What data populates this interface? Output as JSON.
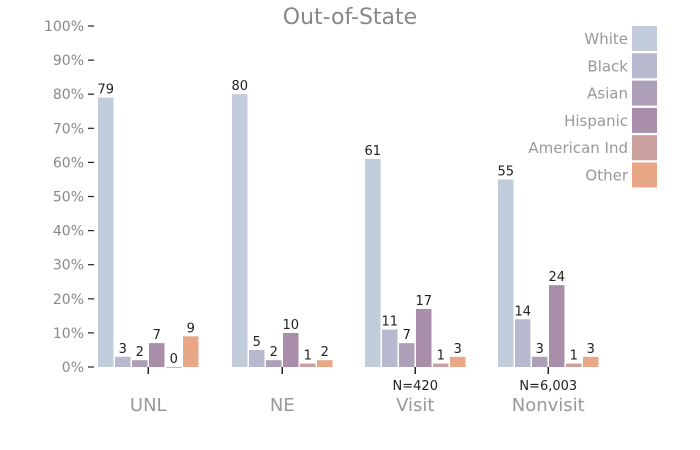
{
  "chart_data": {
    "type": "bar",
    "title": "Out-of-State",
    "categories": [
      "UNL",
      "NE",
      "Visit",
      "Nonvisit"
    ],
    "category_notes": [
      "",
      "",
      "N=420",
      "N=6,003"
    ],
    "ylim": [
      0,
      100
    ],
    "yticks": [
      "0%",
      "10%",
      "20%",
      "30%",
      "40%",
      "50%",
      "60%",
      "70%",
      "80%",
      "90%",
      "100%"
    ],
    "grid": false,
    "legend_position": "top-right",
    "series": [
      {
        "name": "White",
        "color": "#c3ccdb",
        "values": [
          79,
          80,
          61,
          55
        ]
      },
      {
        "name": "Black",
        "color": "#b8b8cf",
        "values": [
          3,
          5,
          11,
          14
        ]
      },
      {
        "name": "Asian",
        "color": "#ae9fb8",
        "values": [
          2,
          2,
          7,
          3
        ]
      },
      {
        "name": "Hispanic",
        "color": "#a88ea8",
        "values": [
          7,
          10,
          17,
          24
        ]
      },
      {
        "name": "American Ind",
        "color": "#c9a09d",
        "values": [
          0,
          1,
          1,
          1
        ]
      },
      {
        "name": "Other",
        "color": "#e8a888",
        "values": [
          9,
          2,
          3,
          3
        ]
      }
    ]
  }
}
